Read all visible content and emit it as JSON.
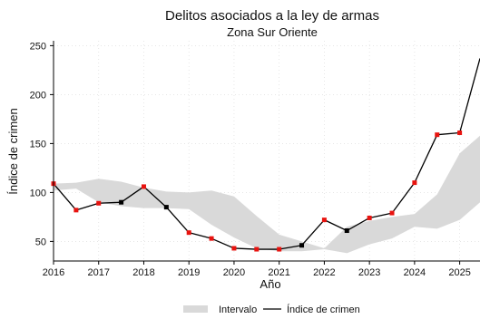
{
  "chart_data": {
    "type": "line",
    "title": "Delitos asociados a la ley de armas",
    "subtitle": "Zona Sur Oriente",
    "xlabel": "Año",
    "ylabel": "Índice de crimen",
    "xlim": [
      2016,
      2025.45
    ],
    "ylim": [
      30,
      255
    ],
    "x_ticks": [
      {
        "value": 2016,
        "label": "2016"
      },
      {
        "value": 2017,
        "label": "2017"
      },
      {
        "value": 2018,
        "label": "2018"
      },
      {
        "value": 2019,
        "label": "2019"
      },
      {
        "value": 2020,
        "label": "2020"
      },
      {
        "value": 2021,
        "label": "2021"
      },
      {
        "value": 2022,
        "label": "2022"
      },
      {
        "value": 2023,
        "label": "2023"
      },
      {
        "value": 2024,
        "label": "2024"
      },
      {
        "value": 2025,
        "label": "2025"
      }
    ],
    "y_ticks": [
      {
        "value": 50,
        "label": "50"
      },
      {
        "value": 100,
        "label": "100"
      },
      {
        "value": 150,
        "label": "150"
      },
      {
        "value": 200,
        "label": "200"
      },
      {
        "value": 250,
        "label": "250"
      }
    ],
    "grid": true,
    "legend_position": "bottom",
    "band": {
      "name": "Intervalo",
      "color": "#d9d9d9",
      "x": [
        2016,
        2016.5,
        2017,
        2017.5,
        2018,
        2018.5,
        2019,
        2019.5,
        2020,
        2020.5,
        2021,
        2021.5,
        2022,
        2022.5,
        2023,
        2023.5,
        2024,
        2024.5,
        2025,
        2025.45
      ],
      "lower": [
        102,
        104,
        90,
        86,
        84,
        84,
        83,
        67,
        54,
        43,
        40,
        40,
        42,
        38,
        47,
        53,
        65,
        63,
        72,
        90
      ],
      "upper": [
        109,
        110,
        114,
        111,
        105,
        101,
        100,
        102,
        96,
        76,
        57,
        50,
        43,
        65,
        71,
        75,
        78,
        98,
        140,
        158
      ]
    },
    "series": [
      {
        "name": "Índice de crimen",
        "color": "#000000",
        "x": [
          2016,
          2016.5,
          2017,
          2017.5,
          2018,
          2018.5,
          2019,
          2019.5,
          2020,
          2020.5,
          2021,
          2021.5,
          2022,
          2022.5,
          2023,
          2023.5,
          2024,
          2024.5,
          2025,
          2025.45
        ],
        "values": [
          109,
          82,
          89,
          90,
          106,
          85,
          59,
          53,
          43,
          42,
          42,
          46,
          72,
          61,
          74,
          79,
          110,
          159,
          161,
          237
        ],
        "marker_colors": [
          "#e8130f",
          "#e8130f",
          "#e8130f",
          "#000000",
          "#e8130f",
          "#000000",
          "#e8130f",
          "#e8130f",
          "#e8130f",
          "#e8130f",
          "#e8130f",
          "#000000",
          "#e8130f",
          "#000000",
          "#e8130f",
          "#e8130f",
          "#e8130f",
          "#e8130f",
          "#e8130f",
          null
        ]
      }
    ]
  }
}
